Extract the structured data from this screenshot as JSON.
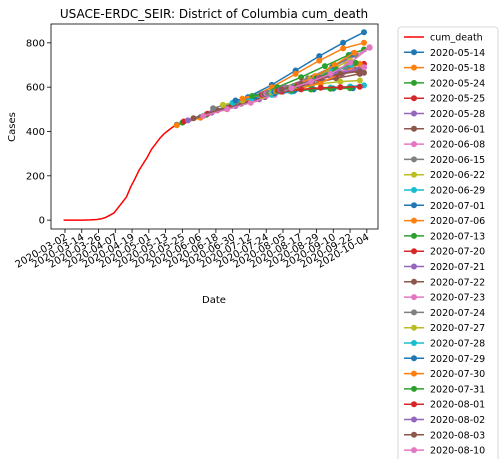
{
  "chart_data": {
    "type": "line",
    "title": "USACE-ERDC_SEIR: District of Columbia cum_death",
    "xlabel": "Date",
    "ylabel": "Cases",
    "ylim": [
      -40,
      885
    ],
    "yticks": [
      0,
      200,
      400,
      600,
      800
    ],
    "grid": false,
    "legend_placement": "outside-right",
    "xticks": [
      "2020-03-02",
      "2020-03-14",
      "2020-03-26",
      "2020-04-07",
      "2020-04-19",
      "2020-05-01",
      "2020-05-13",
      "2020-05-25",
      "2020-06-06",
      "2020-06-18",
      "2020-06-30",
      "2020-07-12",
      "2020-07-24",
      "2020-08-05",
      "2020-08-17",
      "2020-08-29",
      "2020-09-10",
      "2020-09-22",
      "2020-10-04"
    ],
    "observed": {
      "name": "cum_death",
      "color": "#ff0000",
      "x": [
        "2020-03-01",
        "2020-03-08",
        "2020-03-15",
        "2020-03-20",
        "2020-03-25",
        "2020-03-28",
        "2020-03-31",
        "2020-04-03",
        "2020-04-06",
        "2020-04-09",
        "2020-04-12",
        "2020-04-15",
        "2020-04-18",
        "2020-04-21",
        "2020-04-24",
        "2020-04-27",
        "2020-04-30",
        "2020-05-03",
        "2020-05-06",
        "2020-05-09",
        "2020-05-12",
        "2020-05-15",
        "2020-05-18",
        "2020-05-21"
      ],
      "values": [
        0,
        0,
        0,
        1,
        3,
        6,
        12,
        22,
        32,
        56,
        80,
        105,
        150,
        185,
        225,
        255,
        285,
        320,
        345,
        370,
        390,
        405,
        420,
        430
      ]
    },
    "series": [
      {
        "name": "2020-05-14",
        "color": "#1f77b4",
        "x": [
          "2020-05-21",
          "2020-06-07",
          "2020-06-24",
          "2020-07-11",
          "2020-07-28",
          "2020-08-14",
          "2020-08-31",
          "2020-09-17",
          "2020-10-02"
        ],
        "values": [
          430,
          465,
          510,
          555,
          610,
          675,
          740,
          800,
          848
        ]
      },
      {
        "name": "2020-05-18",
        "color": "#ff7f0e",
        "x": [
          "2020-05-21",
          "2020-06-07",
          "2020-06-24",
          "2020-07-11",
          "2020-07-28",
          "2020-08-14",
          "2020-08-31",
          "2020-09-17",
          "2020-10-02"
        ],
        "values": [
          428,
          462,
          505,
          548,
          600,
          660,
          720,
          775,
          800
        ]
      },
      {
        "name": "2020-05-24",
        "color": "#2ca02c",
        "x": [
          "2020-05-25",
          "2020-06-11",
          "2020-06-28",
          "2020-07-15",
          "2020-08-01",
          "2020-08-18",
          "2020-09-04",
          "2020-09-21",
          "2020-10-02"
        ],
        "values": [
          440,
          475,
          515,
          555,
          600,
          645,
          695,
          745,
          770
        ]
      },
      {
        "name": "2020-05-25",
        "color": "#d62728",
        "x": [
          "2020-05-26",
          "2020-06-12",
          "2020-06-29",
          "2020-07-16",
          "2020-08-02",
          "2020-08-19",
          "2020-09-05",
          "2020-09-22",
          "2020-10-02"
        ],
        "values": [
          445,
          480,
          515,
          545,
          585,
          625,
          665,
          695,
          705
        ]
      },
      {
        "name": "2020-05-28",
        "color": "#9467bd",
        "x": [
          "2020-05-29",
          "2020-06-15",
          "2020-07-02",
          "2020-07-19",
          "2020-08-05",
          "2020-08-22",
          "2020-09-08",
          "2020-09-25",
          "2020-10-02"
        ],
        "values": [
          450,
          485,
          515,
          545,
          580,
          615,
          650,
          680,
          690
        ]
      },
      {
        "name": "2020-06-01",
        "color": "#8c564b",
        "x": [
          "2020-06-02",
          "2020-06-19",
          "2020-07-06",
          "2020-07-23",
          "2020-08-09",
          "2020-08-26",
          "2020-09-12",
          "2020-09-29",
          "2020-10-02"
        ],
        "values": [
          460,
          495,
          525,
          555,
          585,
          615,
          640,
          660,
          665
        ]
      },
      {
        "name": "2020-06-08",
        "color": "#e377c2",
        "x": [
          "2020-06-09",
          "2020-06-26",
          "2020-07-13",
          "2020-07-30",
          "2020-08-16",
          "2020-09-02",
          "2020-09-19",
          "2020-10-06"
        ],
        "values": [
          470,
          500,
          530,
          565,
          605,
          650,
          715,
          780
        ]
      },
      {
        "name": "2020-06-15",
        "color": "#7f7f7f",
        "x": [
          "2020-06-16",
          "2020-07-03",
          "2020-07-20",
          "2020-08-06",
          "2020-08-23",
          "2020-09-09",
          "2020-09-26"
        ],
        "values": [
          505,
          535,
          565,
          600,
          640,
          690,
          745
        ]
      },
      {
        "name": "2020-06-22",
        "color": "#bcbd22",
        "x": [
          "2020-06-23",
          "2020-07-07",
          "2020-07-21",
          "2020-08-04",
          "2020-08-18",
          "2020-09-01",
          "2020-09-15",
          "2020-09-29"
        ],
        "values": [
          520,
          540,
          560,
          580,
          600,
          615,
          625,
          630
        ]
      },
      {
        "name": "2020-06-29",
        "color": "#17becf",
        "x": [
          "2020-06-30",
          "2020-07-14",
          "2020-07-28",
          "2020-08-11",
          "2020-08-25",
          "2020-09-08",
          "2020-09-22",
          "2020-10-02"
        ],
        "values": [
          530,
          550,
          565,
          580,
          590,
          598,
          603,
          608
        ]
      },
      {
        "name": "2020-07-01",
        "color": "#1f77b4",
        "x": [
          "2020-07-02",
          "2020-07-16",
          "2020-07-30",
          "2020-08-13",
          "2020-08-27",
          "2020-09-10",
          "2020-09-24"
        ],
        "values": [
          540,
          558,
          572,
          583,
          590,
          594,
          595
        ]
      },
      {
        "name": "2020-07-06",
        "color": "#ff7f0e",
        "x": [
          "2020-07-07",
          "2020-07-21",
          "2020-08-04",
          "2020-08-18",
          "2020-09-01",
          "2020-09-15",
          "2020-09-29"
        ],
        "values": [
          548,
          565,
          580,
          595,
          620,
          660,
          705
        ]
      },
      {
        "name": "2020-07-13",
        "color": "#2ca02c",
        "x": [
          "2020-07-14",
          "2020-07-28",
          "2020-08-11",
          "2020-08-25",
          "2020-09-08",
          "2020-09-22"
        ],
        "values": [
          560,
          575,
          585,
          590,
          593,
          595
        ]
      },
      {
        "name": "2020-07-20",
        "color": "#d62728",
        "x": [
          "2020-07-21",
          "2020-08-04",
          "2020-08-18",
          "2020-09-01",
          "2020-09-15",
          "2020-09-29"
        ],
        "values": [
          565,
          580,
          590,
          597,
          600,
          602
        ]
      },
      {
        "name": "2020-07-21",
        "color": "#9467bd",
        "x": [
          "2020-07-22",
          "2020-08-05",
          "2020-08-19",
          "2020-09-02",
          "2020-09-16",
          "2020-09-30"
        ],
        "values": [
          568,
          590,
          615,
          640,
          660,
          675
        ]
      },
      {
        "name": "2020-07-22",
        "color": "#8c564b",
        "x": [
          "2020-07-23",
          "2020-08-06",
          "2020-08-20",
          "2020-09-03",
          "2020-09-17",
          "2020-10-01"
        ],
        "values": [
          570,
          592,
          620,
          645,
          665,
          680
        ]
      },
      {
        "name": "2020-07-23",
        "color": "#e377c2",
        "x": [
          "2020-07-24",
          "2020-08-07",
          "2020-08-21",
          "2020-09-04",
          "2020-09-18",
          "2020-10-02"
        ],
        "values": [
          572,
          595,
          625,
          650,
          670,
          690
        ]
      },
      {
        "name": "2020-07-24",
        "color": "#7f7f7f",
        "x": [
          "2020-07-25",
          "2020-08-08",
          "2020-08-22",
          "2020-09-05",
          "2020-09-19"
        ],
        "values": [
          574,
          598,
          630,
          660,
          690
        ]
      },
      {
        "name": "2020-07-27",
        "color": "#bcbd22",
        "x": [
          "2020-07-28",
          "2020-08-11",
          "2020-08-25",
          "2020-09-08",
          "2020-09-22"
        ],
        "values": [
          576,
          600,
          640,
          680,
          720
        ]
      },
      {
        "name": "2020-07-28",
        "color": "#17becf",
        "x": [
          "2020-07-29",
          "2020-08-12",
          "2020-08-26",
          "2020-09-09",
          "2020-09-23"
        ],
        "values": [
          578,
          600,
          635,
          670,
          700
        ]
      },
      {
        "name": "2020-07-29",
        "color": "#1f77b4",
        "x": [
          "2020-07-30",
          "2020-08-13",
          "2020-08-27",
          "2020-09-10",
          "2020-09-24"
        ],
        "values": [
          580,
          603,
          645,
          695,
          750
        ]
      },
      {
        "name": "2020-07-30",
        "color": "#ff7f0e",
        "x": [
          "2020-07-31",
          "2020-08-14",
          "2020-08-28",
          "2020-09-11",
          "2020-09-25"
        ],
        "values": [
          582,
          605,
          650,
          700,
          755
        ]
      },
      {
        "name": "2020-07-31",
        "color": "#2ca02c",
        "x": [
          "2020-08-01",
          "2020-08-15",
          "2020-08-29",
          "2020-09-12",
          "2020-09-26"
        ],
        "values": [
          584,
          607,
          640,
          680,
          710
        ]
      },
      {
        "name": "2020-08-01",
        "color": "#d62728",
        "x": [
          "2020-08-02",
          "2020-08-16",
          "2020-08-30",
          "2020-09-13",
          "2020-09-27"
        ],
        "values": [
          586,
          610,
          638,
          660,
          675
        ]
      },
      {
        "name": "2020-08-02",
        "color": "#9467bd",
        "x": [
          "2020-08-03",
          "2020-08-17",
          "2020-08-31",
          "2020-09-14",
          "2020-09-28"
        ],
        "values": [
          588,
          612,
          642,
          665,
          680
        ]
      },
      {
        "name": "2020-08-03",
        "color": "#8c564b",
        "x": [
          "2020-08-04",
          "2020-08-18",
          "2020-09-01",
          "2020-09-15",
          "2020-09-29"
        ],
        "values": [
          590,
          614,
          640,
          660,
          672
        ]
      },
      {
        "name": "2020-08-10",
        "color": "#e377c2",
        "x": [
          "2020-08-11",
          "2020-08-25",
          "2020-09-08",
          "2020-09-22",
          "2020-10-06"
        ],
        "values": [
          595,
          625,
          660,
          710,
          778
        ]
      }
    ]
  }
}
